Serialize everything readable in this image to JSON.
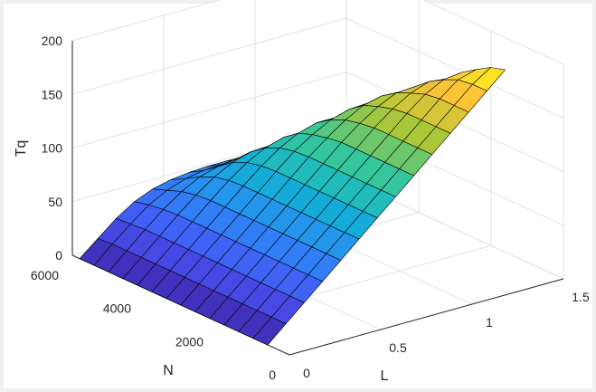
{
  "chart_data": {
    "type": "surface",
    "title": "",
    "xlabel": "L",
    "ylabel": "N",
    "zlabel": "Tq",
    "xlim": [
      0,
      1.5
    ],
    "ylim": [
      0,
      6000
    ],
    "zlim": [
      0,
      200
    ],
    "xticks": [
      "0",
      "0.5",
      "1",
      "1.5"
    ],
    "yticks": [
      "0",
      "2000",
      "4000",
      "6000"
    ],
    "zticks": [
      "0",
      "50",
      "100",
      "150",
      "200"
    ],
    "grid": true,
    "colormap": "parula",
    "L": [
      0,
      0.1,
      0.2,
      0.3,
      0.4,
      0.5,
      0.6,
      0.7,
      0.8,
      0.9,
      1.0,
      1.1,
      1.2,
      1.3
    ],
    "N": [
      600,
      1000,
      1400,
      1800,
      2200,
      2600,
      3000,
      3400,
      3800,
      4200,
      4600,
      5000,
      5400,
      5800
    ],
    "Tq_by_N_then_L": [
      [
        0,
        15,
        30,
        45,
        60,
        75,
        90,
        105,
        120,
        135,
        150,
        165,
        180,
        195
      ],
      [
        0,
        15,
        30,
        45,
        60,
        75,
        90,
        105,
        120,
        135,
        150,
        165,
        180,
        191
      ],
      [
        0,
        15,
        30,
        45,
        60,
        75,
        90,
        105,
        120,
        135,
        150,
        165,
        178,
        183
      ],
      [
        0,
        15,
        30,
        45,
        60,
        75,
        90,
        105,
        120,
        135,
        150,
        163,
        172,
        174
      ],
      [
        0,
        15,
        30,
        45,
        60,
        75,
        90,
        105,
        120,
        135,
        148,
        158,
        164,
        162
      ],
      [
        0,
        15,
        30,
        45,
        60,
        75,
        90,
        105,
        120,
        133,
        144,
        152,
        153,
        150
      ],
      [
        0,
        15,
        30,
        45,
        60,
        75,
        90,
        105,
        118,
        130,
        139,
        143,
        142,
        135
      ],
      [
        0,
        15,
        30,
        45,
        60,
        75,
        90,
        104,
        115,
        124,
        129,
        130,
        128,
        120
      ],
      [
        0,
        15,
        30,
        45,
        60,
        75,
        89,
        101,
        110,
        115,
        115,
        113,
        110,
        105
      ],
      [
        0,
        15,
        30,
        45,
        60,
        74,
        86,
        95,
        100,
        100,
        98,
        95,
        92,
        88
      ],
      [
        0,
        15,
        30,
        45,
        59,
        71,
        80,
        85,
        86,
        85,
        83,
        80,
        77,
        74
      ],
      [
        0,
        15,
        30,
        44,
        56,
        65,
        70,
        72,
        72,
        71,
        69,
        67,
        65,
        63
      ],
      [
        0,
        15,
        29,
        42,
        51,
        57,
        60,
        61,
        61,
        60,
        59,
        58,
        57,
        56
      ],
      [
        0,
        14,
        28,
        39,
        46,
        50,
        52,
        53,
        53,
        53,
        52,
        51,
        50,
        49
      ]
    ]
  }
}
